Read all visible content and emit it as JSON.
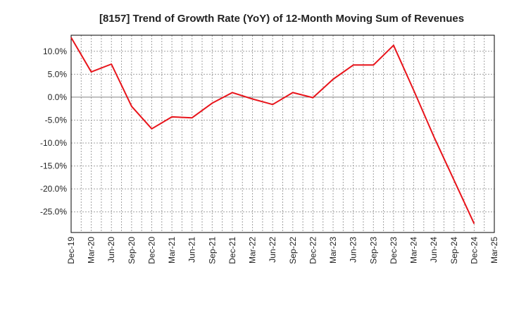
{
  "chart_data": {
    "type": "line",
    "title": "[8157]  Trend of Growth Rate (YoY) of 12-Month Moving Sum of Revenues",
    "xlabel": "",
    "ylabel": "",
    "x_ticks": [
      "Dec-19",
      "Mar-20",
      "Jun-20",
      "Sep-20",
      "Dec-20",
      "Mar-21",
      "Jun-21",
      "Sep-21",
      "Dec-21",
      "Mar-22",
      "Jun-22",
      "Sep-22",
      "Dec-22",
      "Mar-23",
      "Jun-23",
      "Sep-23",
      "Dec-23",
      "Mar-24",
      "Jun-24",
      "Sep-24",
      "Dec-24",
      "Mar-25"
    ],
    "y_ticks": [
      10,
      5,
      0,
      -5,
      -10,
      -15,
      -20,
      -25
    ],
    "y_tick_labels": [
      "10.0%",
      "5.0%",
      "0.0%",
      "-5.0%",
      "-10.0%",
      "-15.0%",
      "-20.0%",
      "-25.0%"
    ],
    "ylim": [
      -29.5,
      13.5
    ],
    "grid": true,
    "series": [
      {
        "color": "#e8141b",
        "x": [
          "Dec-19",
          "Mar-20",
          "Jun-20",
          "Sep-20",
          "Dec-20",
          "Mar-21",
          "Jun-21",
          "Sep-21",
          "Dec-21",
          "Mar-22",
          "Jun-22",
          "Sep-22",
          "Dec-22",
          "Mar-23",
          "Jun-23",
          "Sep-23",
          "Dec-23",
          "Mar-24",
          "Jun-24",
          "Sep-24",
          "Dec-24"
        ],
        "values": [
          13.0,
          5.5,
          7.2,
          -2.0,
          -6.9,
          -4.3,
          -4.5,
          -1.3,
          1.0,
          -0.4,
          -1.6,
          1.0,
          -0.1,
          3.9,
          7.0,
          7.0,
          11.3,
          1.5,
          -8.6,
          -18.1,
          -27.6
        ]
      }
    ]
  }
}
